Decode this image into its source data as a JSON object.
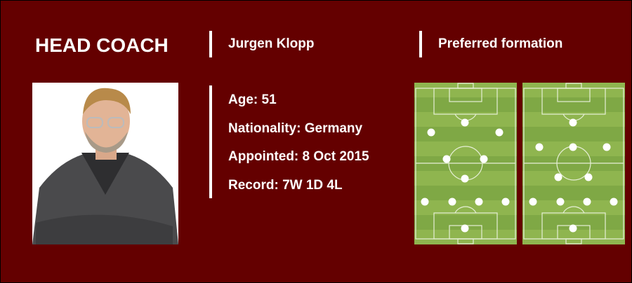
{
  "header": {
    "title": "HEAD COACH",
    "coach_name": "Jurgen Klopp",
    "formation_heading": "Preferred formation"
  },
  "details": {
    "age": "Age: 51",
    "nationality": "Nationality: Germany",
    "appointed": "Appointed: 8 Oct 2015",
    "record": "Record: 7W 1D 4L"
  },
  "photo": {
    "icon": "coach-portrait"
  },
  "colors": {
    "background": "#640000",
    "pitch_light": "#8fb54f",
    "pitch_dark": "#7fa845",
    "text": "#ffffff"
  }
}
